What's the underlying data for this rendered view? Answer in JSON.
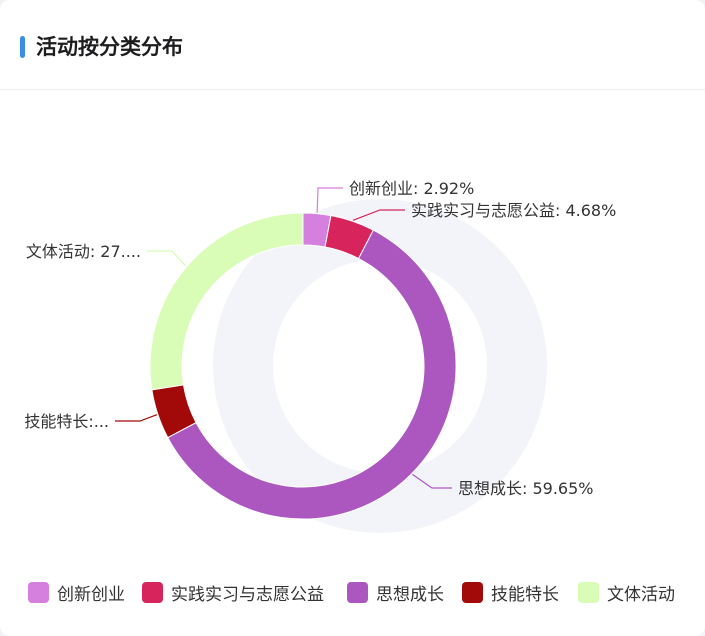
{
  "header": {
    "title": "活动按分类分布"
  },
  "colors": {
    "accent": "#3a8ee6",
    "ring_shadow": "#f3f4f9"
  },
  "chart_data": {
    "type": "pie",
    "style": "donut",
    "title": "活动按分类分布",
    "legend_position": "bottom",
    "slices": [
      {
        "name": "创新创业",
        "value": 2.92,
        "label": "创新创业: 2.92%",
        "color": "#d57fde"
      },
      {
        "name": "实践实习与志愿公益",
        "value": 4.68,
        "label": "实践实习与志愿公益: 4.68%",
        "color": "#d8245c"
      },
      {
        "name": "思想成长",
        "value": 59.65,
        "label": "思想成长: 59.65%",
        "color": "#ab57bf"
      },
      {
        "name": "技能特长",
        "value": 5.26,
        "label": "技能特长:...",
        "color": "#a20a0a"
      },
      {
        "name": "文体活动",
        "value": 27.49,
        "label": "文体活动: 27....",
        "color": "#d9fdb7"
      }
    ]
  },
  "legend": {
    "items": [
      {
        "label": "创新创业",
        "color": "#d57fde"
      },
      {
        "label": "实践实习与志愿公益",
        "color": "#d8245c"
      },
      {
        "label": "思想成长",
        "color": "#ab57bf"
      },
      {
        "label": "技能特长",
        "color": "#a20a0a"
      },
      {
        "label": "文体活动",
        "color": "#d9fdb7"
      }
    ]
  }
}
